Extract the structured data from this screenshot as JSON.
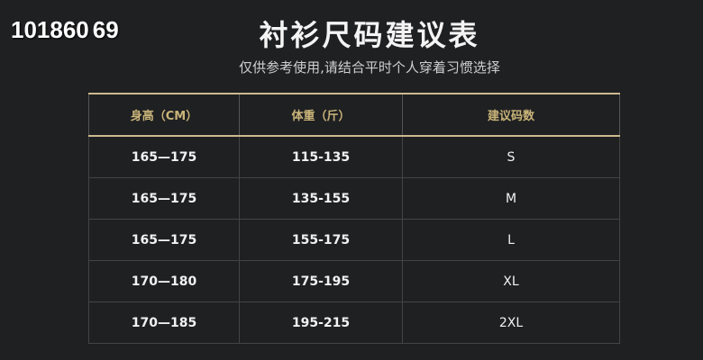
{
  "watermark": {
    "text": "1018",
    "overlay_a": "60",
    "overlay_b": "69"
  },
  "title": "衬衫尺码建议表",
  "subtitle": "仅供参考使用,请结合平时个人穿着习惯选择",
  "table": {
    "headers": [
      "身高（CM）",
      "体重（斤）",
      "建议码数"
    ],
    "rows": [
      [
        "165—175",
        "115-135",
        "S"
      ],
      [
        "165—175",
        "135-155",
        "M"
      ],
      [
        "165—175",
        "155-175",
        "L"
      ],
      [
        "170—180",
        "175-195",
        "XL"
      ],
      [
        "170—185",
        "195-215",
        "2XL"
      ]
    ]
  },
  "colors": {
    "background": "#1f2022",
    "header_text": "#c9b479",
    "border_gold": "#cbb98f"
  }
}
